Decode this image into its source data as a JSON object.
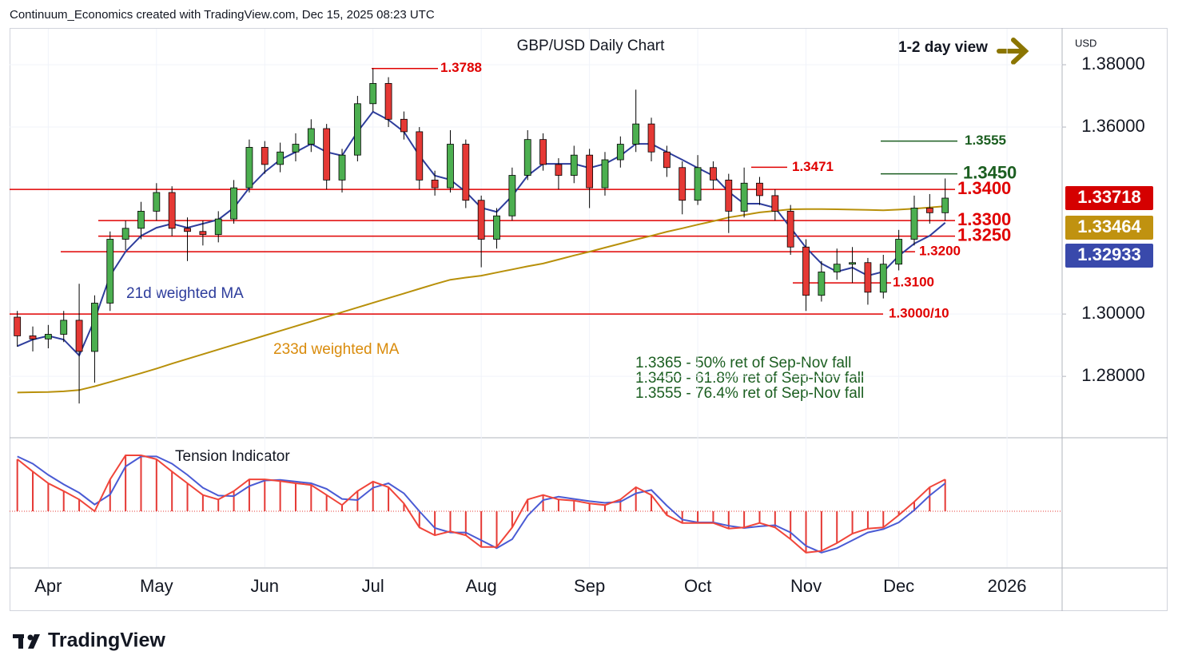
{
  "header": "Continuum_Economics created with TradingView.com, Dec 15, 2025 08:23 UTC",
  "logo": "TradingView",
  "chart_data": [
    {
      "type": "candlestick",
      "title": "GBP/USD Daily Chart",
      "subtitle": "1-2 day view",
      "axis_label": "USD",
      "up_color": "#4caf50",
      "down_color": "#e53935",
      "categories": [
        null,
        null,
        "Apr",
        null,
        null,
        null,
        null,
        null,
        null,
        "May",
        null,
        null,
        null,
        null,
        null,
        null,
        "Jun",
        null,
        null,
        null,
        null,
        null,
        null,
        "Jul",
        null,
        null,
        null,
        null,
        null,
        null,
        "Aug",
        null,
        null,
        null,
        null,
        null,
        null,
        "Sep",
        null,
        null,
        null,
        null,
        null,
        null,
        "Oct",
        null,
        null,
        null,
        null,
        null,
        null,
        "Nov",
        null,
        null,
        null,
        null,
        null,
        "Dec",
        null,
        null,
        null,
        null,
        null,
        null,
        "2026",
        null,
        null,
        null
      ],
      "open": [
        1.299,
        1.293,
        1.292,
        1.2935,
        1.298,
        1.288,
        1.3035,
        1.324,
        1.3275,
        1.333,
        1.339,
        1.3275,
        1.3265,
        1.3255,
        1.3305,
        1.3405,
        1.3535,
        1.348,
        1.352,
        1.3545,
        1.3595,
        1.343,
        1.351,
        1.3675,
        1.374,
        1.3625,
        1.3585,
        1.343,
        1.3405,
        1.3545,
        1.3365,
        1.324,
        1.3315,
        1.3445,
        1.356,
        1.348,
        1.3445,
        1.351,
        1.3405,
        1.3495,
        1.3545,
        1.361,
        1.352,
        1.347,
        1.3365,
        1.347,
        1.343,
        1.333,
        1.342,
        1.338,
        1.333,
        1.3215,
        1.306,
        1.3135,
        1.316,
        1.3165,
        1.307,
        1.316,
        1.324,
        1.334,
        1.3325,
        null,
        null,
        null,
        null,
        null,
        null,
        null
      ],
      "high": [
        1.301,
        1.296,
        1.2965,
        1.301,
        1.3097,
        1.306,
        1.3265,
        1.33,
        1.336,
        1.342,
        1.341,
        1.331,
        1.33,
        1.333,
        1.343,
        1.356,
        1.3555,
        1.355,
        1.358,
        1.3625,
        1.361,
        1.353,
        1.37,
        1.3788,
        1.376,
        1.365,
        1.36,
        1.346,
        1.359,
        1.356,
        1.338,
        1.334,
        1.347,
        1.359,
        1.358,
        1.35,
        1.354,
        1.353,
        1.352,
        1.357,
        1.372,
        1.363,
        1.354,
        1.349,
        1.351,
        1.349,
        1.345,
        1.347,
        1.344,
        1.34,
        1.335,
        1.324,
        1.317,
        1.321,
        1.3215,
        1.318,
        1.319,
        1.327,
        1.338,
        1.3385,
        1.3435,
        null,
        null,
        null,
        null,
        null,
        null,
        null
      ],
      "low": [
        1.2895,
        1.288,
        1.289,
        1.291,
        1.2713,
        1.278,
        1.301,
        1.3205,
        1.324,
        1.33,
        1.325,
        1.317,
        1.322,
        1.323,
        1.329,
        1.339,
        1.345,
        1.3455,
        1.349,
        1.352,
        1.34,
        1.339,
        1.349,
        1.365,
        1.36,
        1.356,
        1.34,
        1.338,
        1.339,
        1.334,
        1.315,
        1.321,
        1.33,
        1.343,
        1.346,
        1.34,
        1.342,
        1.334,
        1.338,
        1.347,
        1.352,
        1.349,
        1.344,
        1.332,
        1.335,
        1.34,
        1.326,
        1.331,
        1.335,
        1.33,
        1.319,
        1.301,
        1.304,
        1.311,
        1.31,
        1.303,
        1.305,
        1.314,
        1.322,
        1.329,
        1.33,
        null,
        null,
        null,
        null,
        null,
        null,
        null
      ],
      "close": [
        1.293,
        1.292,
        1.2935,
        1.298,
        1.288,
        1.3035,
        1.324,
        1.3275,
        1.333,
        1.339,
        1.3275,
        1.3265,
        1.3255,
        1.3305,
        1.3405,
        1.3535,
        1.348,
        1.352,
        1.3545,
        1.3595,
        1.343,
        1.351,
        1.3675,
        1.374,
        1.3625,
        1.3585,
        1.343,
        1.3405,
        1.3545,
        1.3365,
        1.324,
        1.3315,
        1.3445,
        1.356,
        1.348,
        1.3445,
        1.351,
        1.3405,
        1.3495,
        1.3545,
        1.361,
        1.352,
        1.347,
        1.3365,
        1.347,
        1.343,
        1.333,
        1.342,
        1.338,
        1.333,
        1.3215,
        1.306,
        1.3135,
        1.316,
        1.3165,
        1.307,
        1.316,
        1.324,
        1.334,
        1.3325,
        1.3372,
        null,
        null,
        null,
        null,
        null,
        null,
        null
      ],
      "overlays": [
        {
          "name": "21d weighted MA",
          "color": "#2e3d9c",
          "values": [
            1.2897,
            1.2918,
            1.293,
            1.2918,
            1.2867,
            1.2982,
            1.3123,
            1.32,
            1.3251,
            1.3277,
            1.329,
            1.3277,
            1.329,
            1.3303,
            1.3341,
            1.3405,
            1.3456,
            1.3495,
            1.352,
            1.3546,
            1.352,
            1.3508,
            1.3585,
            1.3649,
            1.3623,
            1.3585,
            1.3508,
            1.3444,
            1.3431,
            1.3392,
            1.3341,
            1.3328,
            1.3379,
            1.3444,
            1.3482,
            1.3482,
            1.3482,
            1.3469,
            1.3482,
            1.3508,
            1.3546,
            1.3546,
            1.352,
            1.3495,
            1.3469,
            1.3444,
            1.3392,
            1.3354,
            1.3354,
            1.3341,
            1.3277,
            1.3213,
            1.3162,
            1.3136,
            1.3149,
            1.3123,
            1.3136,
            1.3187,
            1.3226,
            1.3251,
            1.3293,
            null,
            null,
            null,
            null,
            null,
            null,
            null
          ]
        },
        {
          "name": "233d weighted MA",
          "color": "#b8900a",
          "values": [
            1.2748,
            1.2749,
            1.275,
            1.2752,
            1.2756,
            1.2768,
            1.2782,
            1.2796,
            1.281,
            1.2825,
            1.2841,
            1.2856,
            1.2871,
            1.2886,
            1.2901,
            1.2916,
            1.2931,
            1.2946,
            1.2961,
            1.2976,
            1.2991,
            1.3006,
            1.3021,
            1.3036,
            1.3051,
            1.3066,
            1.3081,
            1.3096,
            1.311,
            1.3117,
            1.3123,
            1.3133,
            1.3143,
            1.3153,
            1.3162,
            1.3175,
            1.3188,
            1.32,
            1.3213,
            1.3226,
            1.3239,
            1.3251,
            1.3264,
            1.3275,
            1.3287,
            1.3298,
            1.331,
            1.3318,
            1.3326,
            1.3331,
            1.3336,
            1.3337,
            1.3337,
            1.3336,
            1.3335,
            1.3334,
            1.3333,
            1.3335,
            1.3338,
            1.3342,
            1.3346,
            null,
            null,
            null,
            null,
            null,
            null,
            null
          ]
        }
      ],
      "levels": [
        {
          "value": 1.3788,
          "label": "1.3788",
          "color": "#e00000"
        },
        {
          "value": 1.3471,
          "label": "1.3471",
          "color": "#e00000"
        },
        {
          "value": 1.3555,
          "label": "1.3555",
          "color": "#1b5e20"
        },
        {
          "value": 1.345,
          "label": "1.3450",
          "color": "#1b5e20"
        },
        {
          "value": 1.34,
          "label": "1.3400",
          "color": "#e00000"
        },
        {
          "value": 1.33,
          "label": "1.3300",
          "color": "#e00000"
        },
        {
          "value": 1.325,
          "label": "1.3250",
          "color": "#e00000"
        },
        {
          "value": 1.32,
          "label": "1.3200",
          "color": "#e00000"
        },
        {
          "value": 1.31,
          "label": "1.3100",
          "color": "#e00000"
        },
        {
          "value": 1.3,
          "label": "1.3000/10",
          "color": "#e00000"
        }
      ],
      "annotations": [
        "1.3365 - 50% ret of Sep-Nov fall",
        "1.3450 - 61.8% ret of Sep-Nov fall",
        "1.3555 - 76.4% ret of Sep-Nov fall"
      ],
      "price_labels": [
        {
          "value": 1.33718,
          "color": "#d50000"
        },
        {
          "value": 1.33464,
          "color": "#c09210"
        },
        {
          "value": 1.32933,
          "color": "#3949ab"
        }
      ],
      "ylim": [
        1.2603,
        1.3918
      ],
      "yticks": [
        {
          "value": 1.28,
          "label": "1.28000"
        },
        {
          "value": 1.3,
          "label": "1.30000"
        },
        {
          "value": 1.36,
          "label": "1.36000"
        },
        {
          "value": 1.38,
          "label": "1.38000"
        }
      ],
      "grid": true
    },
    {
      "type": "oscillator",
      "title": "Tension Indicator",
      "histogram_color": "#e53935",
      "ylim": [
        -0.9,
        1.05
      ],
      "series": [
        {
          "color": "#f0453a",
          "values": [
            0.93,
            0.71,
            0.5,
            0.36,
            0.21,
            0,
            0.57,
            1.0,
            1.0,
            0.93,
            0.71,
            0.5,
            0.29,
            0.21,
            0.36,
            0.57,
            0.57,
            0.54,
            0.5,
            0.47,
            0.29,
            0.11,
            0.36,
            0.53,
            0.43,
            0.14,
            -0.29,
            -0.43,
            -0.36,
            -0.43,
            -0.64,
            -0.64,
            -0.29,
            0.21,
            0.29,
            0.21,
            0.19,
            0.14,
            0.11,
            0.21,
            0.43,
            0.29,
            -0.07,
            -0.21,
            -0.21,
            -0.21,
            -0.31,
            -0.29,
            -0.21,
            -0.29,
            -0.5,
            -0.74,
            -0.71,
            -0.57,
            -0.4,
            -0.31,
            -0.29,
            -0.07,
            0.17,
            0.43,
            0.57,
            null,
            null,
            null,
            null,
            null,
            null,
            null
          ]
        },
        {
          "color": "#4a5bd4",
          "values": [
            0.98,
            0.85,
            0.65,
            0.48,
            0.33,
            0.12,
            0.3,
            0.8,
            0.98,
            0.98,
            0.85,
            0.65,
            0.42,
            0.28,
            0.27,
            0.45,
            0.55,
            0.56,
            0.53,
            0.5,
            0.4,
            0.22,
            0.2,
            0.42,
            0.5,
            0.32,
            0.0,
            -0.3,
            -0.38,
            -0.38,
            -0.52,
            -0.66,
            -0.5,
            -0.08,
            0.2,
            0.26,
            0.22,
            0.18,
            0.15,
            0.17,
            0.32,
            0.38,
            0.1,
            -0.15,
            -0.2,
            -0.2,
            -0.26,
            -0.3,
            -0.27,
            -0.25,
            -0.38,
            -0.62,
            -0.74,
            -0.66,
            -0.52,
            -0.38,
            -0.32,
            -0.2,
            0.02,
            0.28,
            0.5,
            null,
            null,
            null,
            null,
            null,
            null,
            null
          ]
        }
      ]
    }
  ]
}
